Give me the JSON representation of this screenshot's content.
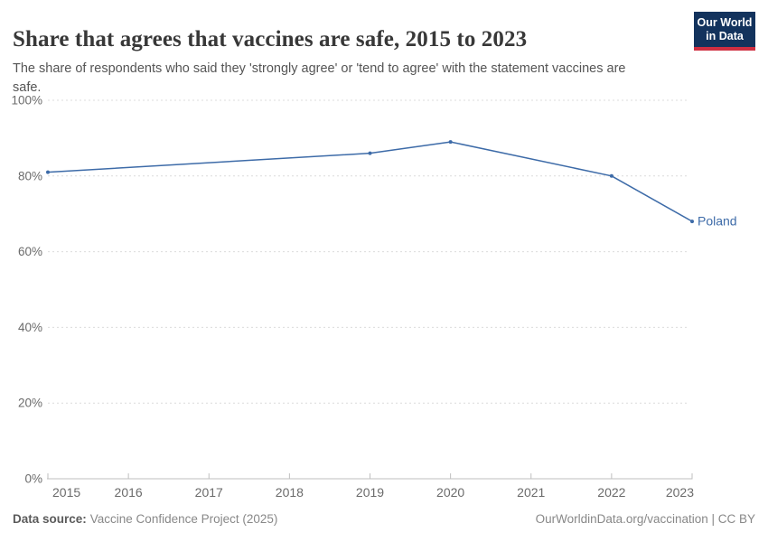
{
  "header": {
    "title": "Share that agrees that vaccines are safe, 2015 to 2023",
    "subtitle": "The share of respondents who said they 'strongly agree' or 'tend to agree' with the statement vaccines are safe.",
    "logo": {
      "line1": "Our World",
      "line2": "in Data"
    }
  },
  "footer": {
    "source_label": "Data source:",
    "source_text": "Vaccine Confidence Project (2025)",
    "link_text": "OurWorldinData.org/vaccination | CC BY"
  },
  "colors": {
    "line": "#3d6ba8",
    "series_label": "#3d6ba8",
    "grid": "#dcdcdc",
    "axis": "#bfbfbf",
    "tick_text": "#6b6b6b",
    "logo_bg": "#13335d",
    "logo_red": "#cf2e41",
    "title_text": "#383838",
    "subtitle_text": "#555555"
  },
  "chart_data": {
    "type": "line",
    "title": "Share that agrees that vaccines are safe, 2015 to 2023",
    "xlabel": "",
    "ylabel": "",
    "xlim": [
      2015,
      2023
    ],
    "ylim": [
      0,
      100
    ],
    "x_ticks": [
      2015,
      2016,
      2017,
      2018,
      2019,
      2020,
      2021,
      2022,
      2023
    ],
    "y_ticks": [
      0,
      20,
      40,
      60,
      80,
      100
    ],
    "y_tick_suffix": "%",
    "grid": true,
    "legend_position": "end-of-line",
    "series": [
      {
        "name": "Poland",
        "points": [
          {
            "x": 2015,
            "y": 81
          },
          {
            "x": 2019,
            "y": 86
          },
          {
            "x": 2020,
            "y": 89
          },
          {
            "x": 2022,
            "y": 80
          },
          {
            "x": 2023,
            "y": 68
          }
        ]
      }
    ]
  }
}
